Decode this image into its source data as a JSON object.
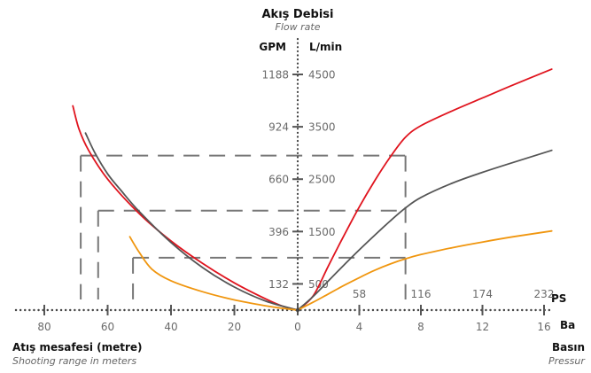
{
  "header": {
    "title": "Akış Debisi",
    "subtitle": "Flow rate",
    "unit_left": "GPM",
    "unit_right": "L/min"
  },
  "left_axis": {
    "title": "Atış mesafesi (metre)",
    "subtitle": "Shooting range in meters"
  },
  "right_axis": {
    "title_top": "PS",
    "title_mid": "Ba",
    "title_bottom": "Basın",
    "subtitle": "Pressur"
  },
  "chart_data": {
    "type": "line",
    "flow_axis": {
      "gpm_ticks": [
        "1188",
        "924",
        "660",
        "396",
        "132"
      ],
      "lmin_ticks": [
        "4500",
        "3500",
        "2500",
        "1500",
        "500"
      ],
      "lmin_values": [
        4500,
        3500,
        2500,
        1500,
        500
      ],
      "range_lmin": [
        0,
        4500
      ]
    },
    "range_axis": {
      "ticks": [
        "80",
        "60",
        "40",
        "20",
        "0"
      ],
      "values": [
        80,
        60,
        40,
        20,
        0
      ],
      "range": [
        0,
        80
      ],
      "direction": "leftward"
    },
    "pressure_axis": {
      "bar_ticks": [
        "4",
        "8",
        "12",
        "16"
      ],
      "bar_values": [
        4,
        8,
        12,
        16
      ],
      "psi_ticks": [
        "58",
        "116",
        "174",
        "232"
      ],
      "psi_values": [
        58,
        116,
        174,
        232
      ],
      "range_bar": [
        0,
        16.5
      ]
    },
    "series": [
      {
        "color": "#e0141e",
        "pressure": [
          [
            0,
            0
          ],
          [
            1,
            270
          ],
          [
            2,
            850
          ],
          [
            3,
            1420
          ],
          [
            4,
            1970
          ],
          [
            5,
            2470
          ],
          [
            6,
            2920
          ],
          [
            7,
            3300
          ],
          [
            8,
            3520
          ],
          [
            10,
            3800
          ],
          [
            12,
            4050
          ],
          [
            14,
            4300
          ],
          [
            16.5,
            4600
          ]
        ],
        "range": [
          [
            0,
            0
          ],
          [
            5,
            80
          ],
          [
            10,
            210
          ],
          [
            20,
            520
          ],
          [
            30,
            890
          ],
          [
            40,
            1320
          ],
          [
            50,
            1840
          ],
          [
            60,
            2500
          ],
          [
            66,
            3050
          ],
          [
            69,
            3450
          ],
          [
            71,
            3900
          ]
        ]
      },
      {
        "color": "#555555",
        "pressure": [
          [
            0,
            0
          ],
          [
            1,
            260
          ],
          [
            2,
            560
          ],
          [
            3,
            860
          ],
          [
            4,
            1150
          ],
          [
            5,
            1430
          ],
          [
            6,
            1700
          ],
          [
            7,
            1950
          ],
          [
            8,
            2150
          ],
          [
            10,
            2420
          ],
          [
            12,
            2630
          ],
          [
            14,
            2820
          ],
          [
            16.5,
            3050
          ]
        ],
        "range": [
          [
            0,
            0
          ],
          [
            10,
            170
          ],
          [
            20,
            440
          ],
          [
            30,
            810
          ],
          [
            40,
            1290
          ],
          [
            50,
            1880
          ],
          [
            56,
            2300
          ],
          [
            60,
            2600
          ],
          [
            64,
            3000
          ],
          [
            67,
            3380
          ]
        ]
      },
      {
        "color": "#f0960f",
        "pressure": [
          [
            0,
            0
          ],
          [
            1,
            150
          ],
          [
            2,
            310
          ],
          [
            3,
            470
          ],
          [
            4,
            620
          ],
          [
            5,
            760
          ],
          [
            6,
            880
          ],
          [
            7,
            980
          ],
          [
            8,
            1060
          ],
          [
            10,
            1190
          ],
          [
            12,
            1300
          ],
          [
            14,
            1400
          ],
          [
            16.5,
            1510
          ]
        ],
        "range": [
          [
            0,
            0
          ],
          [
            5,
            35
          ],
          [
            10,
            80
          ],
          [
            20,
            195
          ],
          [
            30,
            350
          ],
          [
            40,
            560
          ],
          [
            46,
            780
          ],
          [
            50,
            1100
          ],
          [
            53,
            1400
          ]
        ]
      }
    ],
    "reference_lines": [
      {
        "color": "#e0141e",
        "flow_lmin": 2950,
        "pressure_bar": 7,
        "range_m": 68.5
      },
      {
        "color": "#555555",
        "flow_lmin": 1900,
        "pressure_bar": 7,
        "range_m": 63
      },
      {
        "color": "#f0960f",
        "flow_lmin": 1000,
        "pressure_bar": 7,
        "range_m": 52
      }
    ]
  }
}
